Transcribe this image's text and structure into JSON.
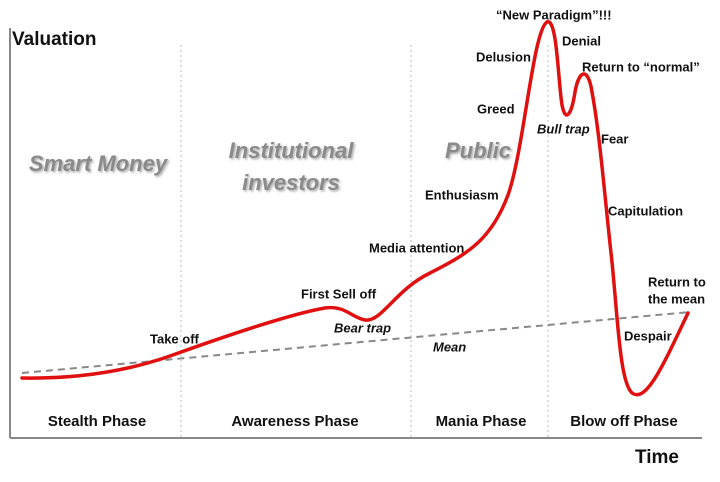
{
  "axes": {
    "y_label": "Valuation",
    "x_label": "Time"
  },
  "zones": {
    "smart_money": "Smart Money",
    "institutional": [
      "Institutional",
      "investors"
    ],
    "public": "Public"
  },
  "phases": [
    "Stealth Phase",
    "Awareness Phase",
    "Mania Phase",
    "Blow off Phase"
  ],
  "annotations": {
    "take_off": "Take off",
    "first_sell_off": "First Sell off",
    "bear_trap": "Bear trap",
    "media_attention": "Media attention",
    "enthusiasm": "Enthusiasm",
    "greed": "Greed",
    "delusion": "Delusion",
    "new_paradigm": "“New Paradigm”!!!",
    "denial": "Denial",
    "return_to_normal": "Return to “normal”",
    "bull_trap": "Bull trap",
    "fear": "Fear",
    "capitulation": "Capitulation",
    "return_to_mean": [
      "Return to",
      "the mean"
    ],
    "despair": "Despair",
    "mean": "Mean"
  }
}
